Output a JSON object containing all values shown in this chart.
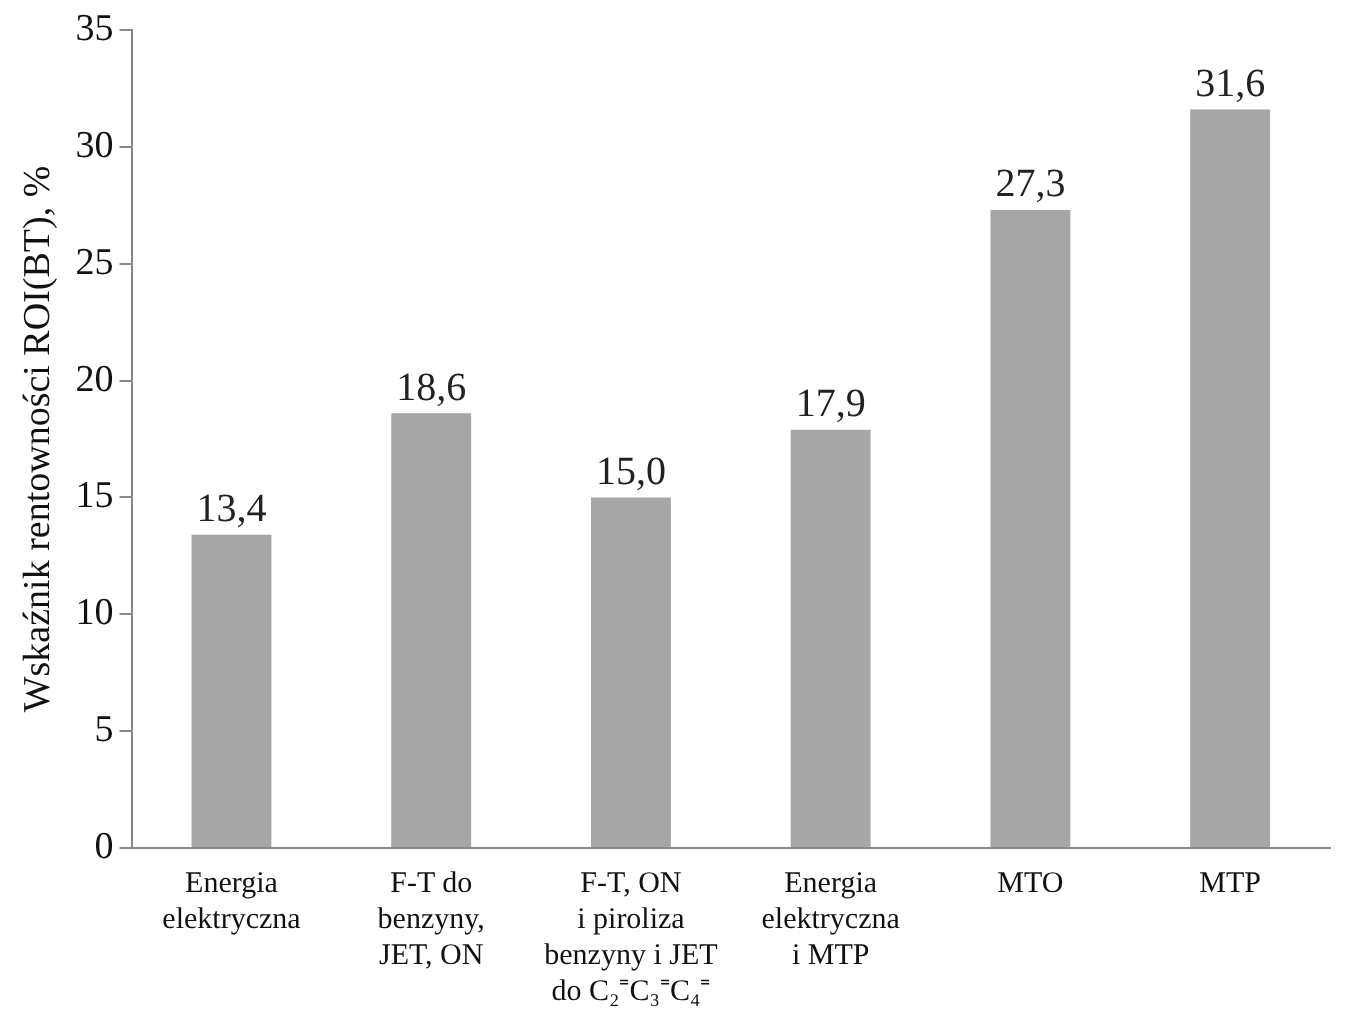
{
  "chart_data": {
    "type": "bar",
    "ylabel": "Wskaźnik rentowności ROI(BT), %",
    "categories": [
      "Energia\nelektryczna",
      "F-T do\nbenzyny,\nJET, ON",
      "F-T, ON\ni piroliza\nbenzyny i JET\ndo C₂⁼C₃⁼C₄⁼",
      "Energia\nelektryczna\ni MTP",
      "MTO",
      "MTP"
    ],
    "values": [
      13.4,
      18.6,
      15.0,
      17.9,
      27.3,
      31.6
    ],
    "value_labels": [
      "13,4",
      "18,6",
      "15,0",
      "17,9",
      "27,3",
      "31,6"
    ],
    "color": "#a6a6a6",
    "ylim": [
      0,
      35
    ],
    "yticks": [
      0,
      5,
      10,
      15,
      20,
      25,
      30,
      35
    ],
    "grid": false
  }
}
